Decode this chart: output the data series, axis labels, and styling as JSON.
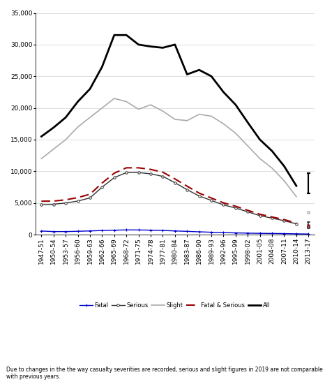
{
  "footnote": "Due to changes in the the way casualty severities are recorded, serious and slight figures in 2019 are not comparable with previous years.",
  "x_labels": [
    "1947-51",
    "1950-54",
    "1953-57",
    "1956-60",
    "1959-63",
    "1962-66",
    "1965-69",
    "1968-72",
    "1971-75",
    "1974-78",
    "1977-81",
    "1980-84",
    "1983-87",
    "1986-90",
    "1989-93",
    "1992-96",
    "1995-99",
    "1998-02",
    "2001-05",
    "2004-08",
    "2007-11",
    "2010-14",
    "2013-17"
  ],
  "fatal": [
    570,
    490,
    490,
    530,
    590,
    650,
    700,
    750,
    740,
    710,
    660,
    590,
    520,
    450,
    380,
    320,
    280,
    240,
    210,
    190,
    170,
    130,
    100
  ],
  "serious": [
    4700,
    4800,
    5000,
    5300,
    5800,
    7500,
    9000,
    9800,
    9800,
    9600,
    9200,
    8200,
    7100,
    6100,
    5400,
    4700,
    4200,
    3600,
    3000,
    2600,
    2200,
    1700,
    1300
  ],
  "slight": [
    12000,
    13500,
    15000,
    17000,
    18500,
    20000,
    21500,
    21000,
    19800,
    20500,
    19500,
    18200,
    18000,
    19000,
    18700,
    17500,
    16000,
    14000,
    12000,
    10500,
    8500,
    6000,
    3500
  ],
  "fatal_and_serious": [
    5280,
    5300,
    5500,
    5850,
    6380,
    8150,
    9700,
    10550,
    10550,
    10300,
    9860,
    8800,
    7650,
    6550,
    5780,
    5020,
    4480,
    3840,
    3220,
    2790,
    2370,
    1830,
    1400
  ],
  "all": [
    15500,
    16900,
    18500,
    21000,
    23000,
    26500,
    31500,
    31500,
    30000,
    29700,
    29500,
    30000,
    25300,
    26000,
    25000,
    22500,
    20500,
    17700,
    15000,
    13200,
    10800,
    7700,
    9700
  ],
  "all_2019": 9700,
  "serious_2019": 1300,
  "slight_2019": 3500,
  "fatal_serious_2019": 1400,
  "ylim": [
    0,
    35000
  ],
  "yticks": [
    0,
    5000,
    10000,
    15000,
    20000,
    25000,
    30000,
    35000
  ],
  "fatal_color": "#0000cc",
  "serious_color": "#333333",
  "slight_color": "#aaaaaa",
  "fatal_serious_color": "#990000",
  "all_color": "#000000",
  "background": "#ffffff",
  "errorbar_color_all": "#000000",
  "errorbar_color_serious": "#444444",
  "errorbar_color_slight": "#aaaaaa",
  "errorbar_color_fs": "#990000"
}
